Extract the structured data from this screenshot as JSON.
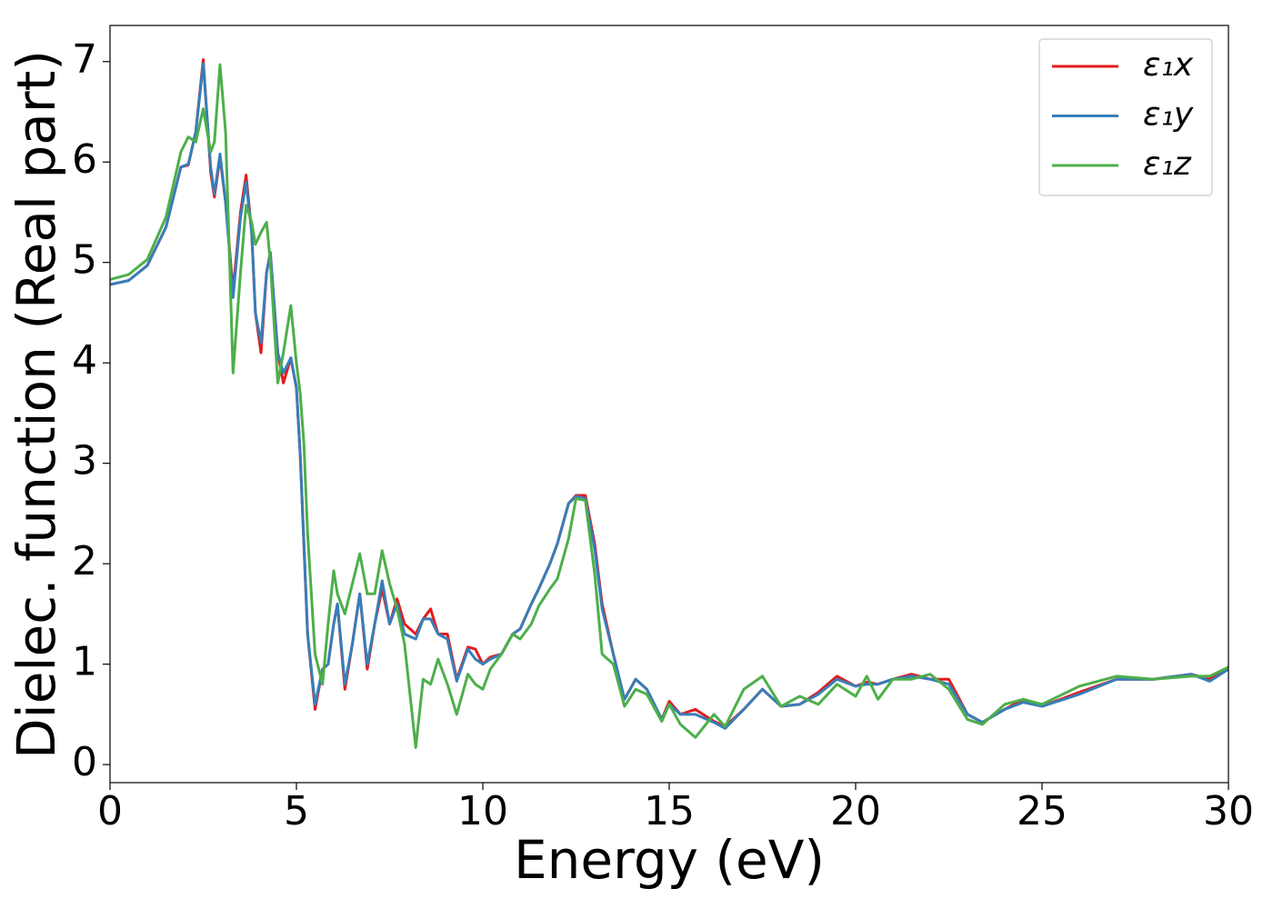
{
  "chart_data": {
    "type": "line",
    "x_label": "Energy (eV)",
    "y_label": "Dielec. function (Real part)",
    "x": [
      0,
      0.5,
      1.0,
      1.5,
      1.9,
      2.1,
      2.3,
      2.5,
      2.7,
      2.8,
      2.95,
      3.1,
      3.3,
      3.5,
      3.65,
      3.8,
      3.9,
      4.05,
      4.2,
      4.3,
      4.5,
      4.65,
      4.85,
      5.0,
      5.1,
      5.2,
      5.3,
      5.5,
      5.7,
      5.85,
      6.0,
      6.1,
      6.3,
      6.5,
      6.7,
      6.9,
      7.1,
      7.3,
      7.5,
      7.7,
      7.9,
      8.2,
      8.4,
      8.6,
      8.8,
      9.05,
      9.3,
      9.6,
      9.8,
      10.0,
      10.2,
      10.5,
      10.8,
      11.0,
      11.3,
      11.5,
      11.8,
      12.0,
      12.3,
      12.5,
      12.75,
      13.0,
      13.2,
      13.5,
      13.8,
      14.1,
      14.4,
      14.8,
      15.0,
      15.3,
      15.7,
      16.2,
      16.5,
      17.0,
      17.5,
      18.0,
      18.5,
      19.0,
      19.5,
      20.0,
      20.3,
      20.6,
      21.0,
      21.5,
      22.0,
      22.5,
      23.0,
      23.4,
      24.0,
      24.5,
      25.0,
      26.0,
      27.0,
      28.0,
      29.0,
      29.5,
      30.0
    ],
    "series": [
      {
        "name": "ε₁x",
        "color": "#e41a1c",
        "values": [
          4.78,
          4.82,
          4.97,
          5.35,
          5.95,
          5.97,
          6.3,
          7.02,
          5.9,
          5.65,
          6.05,
          5.6,
          4.72,
          5.5,
          5.87,
          5.3,
          4.5,
          4.1,
          4.9,
          5.1,
          4.1,
          3.8,
          4.05,
          3.75,
          3.1,
          2.2,
          1.3,
          0.55,
          0.95,
          1.0,
          1.4,
          1.6,
          0.75,
          1.2,
          1.7,
          0.95,
          1.4,
          1.75,
          1.4,
          1.65,
          1.4,
          1.3,
          1.45,
          1.55,
          1.3,
          1.3,
          0.85,
          1.17,
          1.15,
          1.0,
          1.07,
          1.1,
          1.3,
          1.35,
          1.6,
          1.75,
          2.0,
          2.2,
          2.6,
          2.68,
          2.68,
          2.2,
          1.6,
          1.1,
          0.65,
          0.85,
          0.75,
          0.45,
          0.63,
          0.5,
          0.55,
          0.43,
          0.38,
          0.55,
          0.75,
          0.58,
          0.6,
          0.72,
          0.88,
          0.78,
          0.82,
          0.8,
          0.85,
          0.9,
          0.85,
          0.85,
          0.5,
          0.42,
          0.55,
          0.65,
          0.58,
          0.72,
          0.85,
          0.85,
          0.9,
          0.85,
          0.95
        ]
      },
      {
        "name": "ε₁y",
        "color": "#377eb8",
        "values": [
          4.78,
          4.82,
          4.97,
          5.35,
          5.95,
          5.98,
          6.3,
          6.98,
          5.95,
          5.68,
          6.08,
          5.6,
          4.65,
          5.45,
          5.8,
          5.3,
          4.5,
          4.2,
          4.9,
          5.1,
          4.1,
          3.9,
          4.05,
          3.75,
          3.1,
          2.2,
          1.3,
          0.6,
          0.95,
          1.0,
          1.4,
          1.6,
          0.8,
          1.2,
          1.7,
          1.0,
          1.4,
          1.83,
          1.4,
          1.6,
          1.3,
          1.25,
          1.45,
          1.45,
          1.3,
          1.25,
          0.83,
          1.15,
          1.05,
          1.0,
          1.05,
          1.1,
          1.3,
          1.35,
          1.6,
          1.75,
          2.0,
          2.2,
          2.6,
          2.67,
          2.65,
          2.15,
          1.55,
          1.1,
          0.65,
          0.85,
          0.75,
          0.45,
          0.6,
          0.5,
          0.5,
          0.42,
          0.36,
          0.55,
          0.75,
          0.58,
          0.6,
          0.7,
          0.85,
          0.78,
          0.8,
          0.8,
          0.85,
          0.88,
          0.85,
          0.8,
          0.5,
          0.42,
          0.55,
          0.62,
          0.58,
          0.7,
          0.85,
          0.85,
          0.9,
          0.83,
          0.95
        ]
      },
      {
        "name": "ε₁z",
        "color": "#4daf4a",
        "values": [
          4.83,
          4.88,
          5.03,
          5.45,
          6.1,
          6.25,
          6.2,
          6.53,
          6.1,
          6.2,
          6.97,
          6.3,
          3.9,
          4.9,
          5.57,
          5.4,
          5.18,
          5.3,
          5.4,
          5.0,
          3.8,
          4.1,
          4.57,
          4.0,
          3.7,
          3.2,
          2.3,
          1.1,
          0.8,
          1.4,
          1.93,
          1.7,
          1.5,
          1.8,
          2.1,
          1.7,
          1.7,
          2.13,
          1.8,
          1.55,
          1.2,
          0.17,
          0.85,
          0.8,
          1.05,
          0.8,
          0.5,
          0.9,
          0.8,
          0.75,
          0.95,
          1.1,
          1.3,
          1.25,
          1.4,
          1.58,
          1.75,
          1.85,
          2.25,
          2.65,
          2.63,
          1.9,
          1.1,
          1.0,
          0.58,
          0.75,
          0.7,
          0.43,
          0.6,
          0.4,
          0.27,
          0.5,
          0.38,
          0.75,
          0.88,
          0.58,
          0.68,
          0.6,
          0.8,
          0.68,
          0.88,
          0.65,
          0.85,
          0.85,
          0.9,
          0.75,
          0.45,
          0.4,
          0.6,
          0.65,
          0.6,
          0.78,
          0.88,
          0.85,
          0.88,
          0.88,
          0.97
        ]
      }
    ],
    "xlim": [
      0,
      30
    ],
    "xticks": [
      0,
      5,
      10,
      15,
      20,
      25,
      30
    ],
    "ylim": [
      -0.18,
      7.36
    ],
    "yticks": [
      0,
      1,
      2,
      3,
      4,
      5,
      6,
      7
    ],
    "legend": "upper right"
  }
}
